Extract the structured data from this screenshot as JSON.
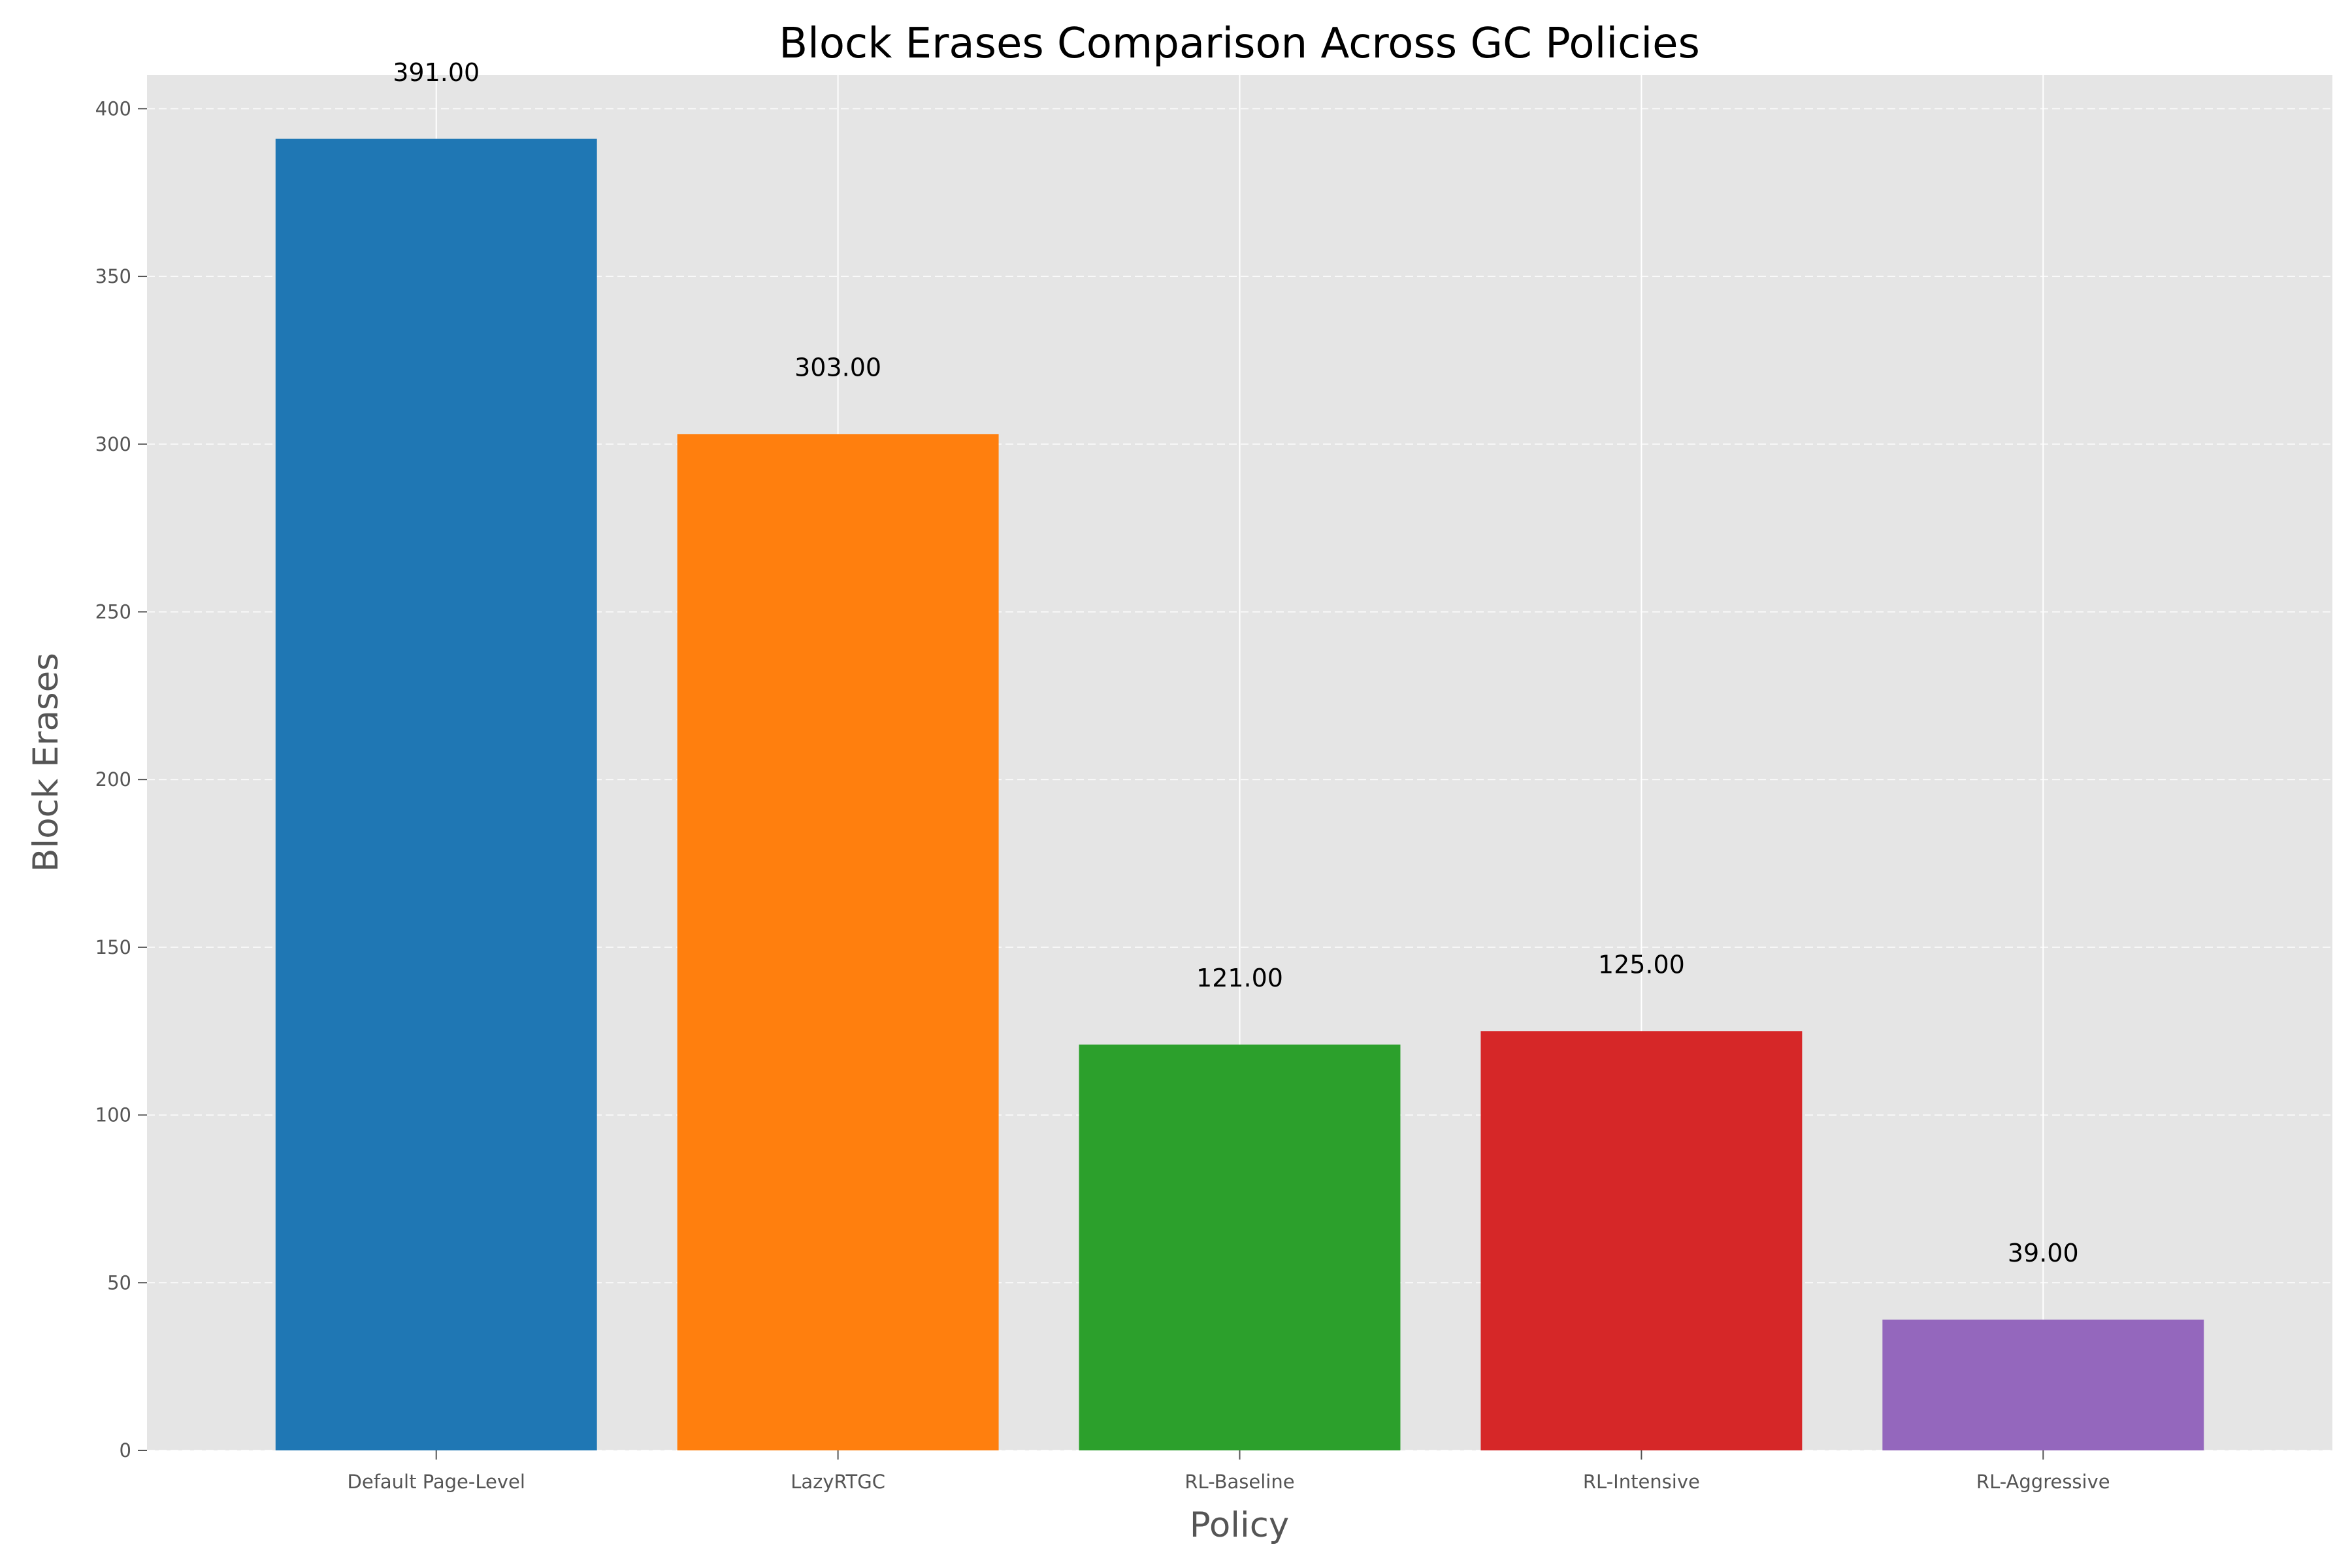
{
  "chart_data": {
    "type": "bar",
    "title": "Block Erases Comparison Across GC Policies",
    "xlabel": "Policy",
    "ylabel": "Block Erases",
    "categories": [
      "Default Page-Level",
      "LazyRTGC",
      "RL-Baseline",
      "RL-Intensive",
      "RL-Aggressive"
    ],
    "values": [
      391,
      303,
      121,
      125,
      39
    ],
    "value_labels": [
      "391.00",
      "303.00",
      "121.00",
      "125.00",
      "39.00"
    ],
    "colors": [
      "#1f77b4",
      "#ff7f0e",
      "#2ca02c",
      "#d62728",
      "#9467bd"
    ],
    "yticks": [
      0,
      50,
      100,
      150,
      200,
      250,
      300,
      350,
      400
    ],
    "ylim": [
      0,
      410
    ],
    "grid": true,
    "plot_background": "#e5e5e5",
    "grid_color": "#ffffff"
  }
}
